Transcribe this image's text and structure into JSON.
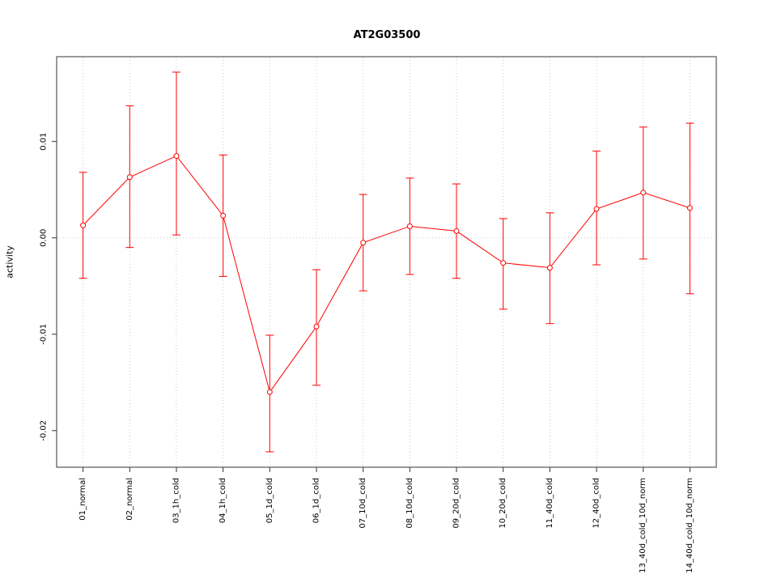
{
  "figure": {
    "title": "AT2G03500",
    "ylabel": "activity"
  },
  "chart_data": {
    "type": "line",
    "title": "AT2G03500",
    "xlabel": "",
    "ylabel": "activity",
    "categories": [
      "01_normal",
      "02_normal",
      "03_1h_cold",
      "04_1h_cold",
      "05_1d_cold",
      "06_1d_cold",
      "07_10d_cold",
      "08_10d_cold",
      "09_20d_cold",
      "10_20d_cold",
      "11_40d_cold",
      "12_40d_cold",
      "13_40d_cold_10d_norm",
      "14_40d_cold_10d_norm"
    ],
    "series": [
      {
        "name": "activity",
        "values": [
          0.0013,
          0.0063,
          0.0085,
          0.0023,
          -0.016,
          -0.0092,
          -0.0005,
          0.0012,
          0.0007,
          -0.0026,
          -0.0031,
          0.003,
          0.0047,
          0.0031
        ],
        "error_upper": [
          0.0068,
          0.0137,
          0.0172,
          0.0086,
          -0.0101,
          -0.0033,
          0.0045,
          0.0062,
          0.0056,
          0.002,
          0.0026,
          0.009,
          0.0115,
          0.0119
        ],
        "error_lower": [
          -0.0042,
          -0.001,
          0.0003,
          -0.004,
          -0.0222,
          -0.0153,
          -0.0055,
          -0.0038,
          -0.0042,
          -0.0074,
          -0.0089,
          -0.0028,
          -0.0022,
          -0.0058
        ]
      }
    ],
    "yticks": [
      -0.02,
      -0.01,
      0.0,
      0.01
    ],
    "ylim": [
      -0.0238,
      0.0188
    ],
    "legend": "none",
    "grid": "dotted vertical lines at each category; dotted horizontal line at 0",
    "marker": "open-circle",
    "line_color": "#ff0000",
    "grid_color": "#cccccc",
    "axis_color": "#333333",
    "background": "#ffffff"
  }
}
